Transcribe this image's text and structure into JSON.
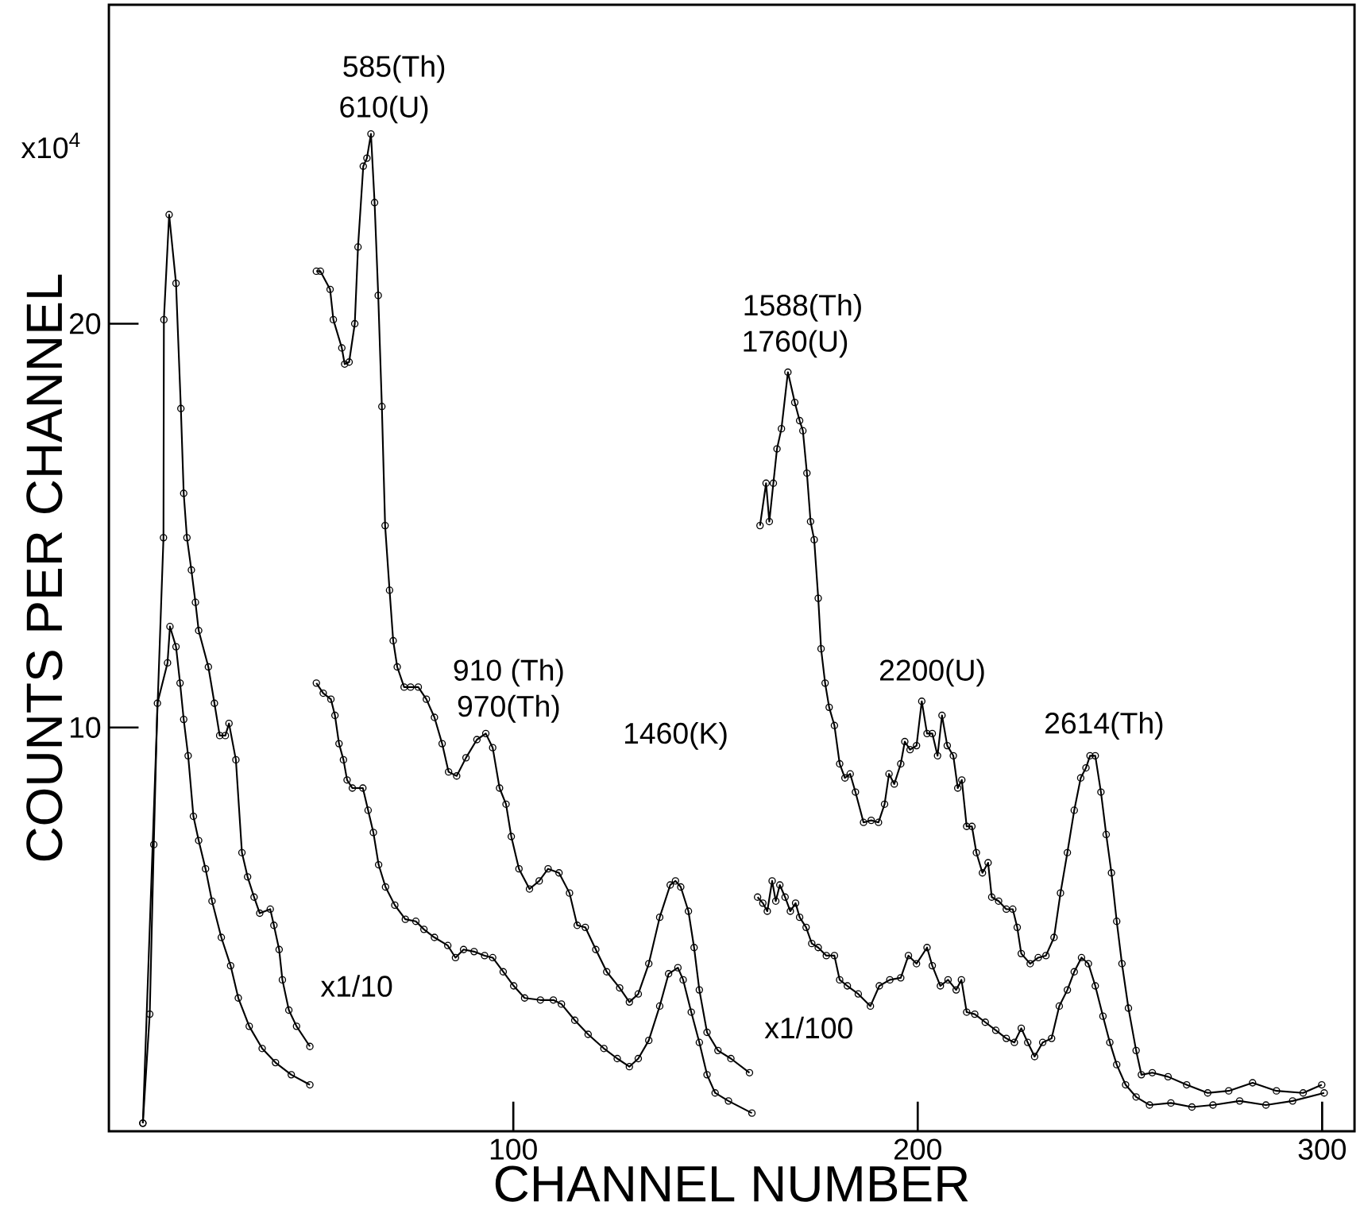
{
  "chart_data": {
    "type": "line",
    "xlabel": "CHANNEL NUMBER",
    "ylabel": "COUNTS PER CHANNEL",
    "xlim": [
      0,
      308
    ],
    "ylim": [
      0,
      27.9
    ],
    "xticks": [
      100,
      200,
      300
    ],
    "yticks": [
      10,
      20
    ],
    "marker": "circle",
    "series": [
      {
        "color": "#000000",
        "x": [
          8.4,
          13.5,
          13.6,
          14.9,
          16.6,
          17.8,
          18.5,
          19.3,
          20.4,
          21.4,
          22.2,
          24.6,
          26.1,
          27.4,
          28.8,
          29.7,
          31.4,
          32.9,
          34.3,
          35.9,
          37.3,
          39.9,
          40.8,
          42.1,
          42.9,
          44.5,
          46.4,
          49.7
        ],
        "values": [
          0.2,
          14.7,
          20.1,
          22.7,
          21.0,
          17.9,
          15.8,
          14.7,
          13.9,
          13.1,
          12.4,
          11.5,
          10.6,
          9.8,
          9.8,
          10.1,
          9.2,
          6.9,
          6.3,
          5.8,
          5.4,
          5.5,
          5.1,
          4.5,
          3.75,
          3.0,
          2.6,
          2.1
        ]
      },
      {
        "color": "#000000",
        "x": [
          8.4,
          10.1,
          11.1,
          12.0,
          14.5,
          15.1,
          16.6,
          17.6,
          18.5,
          19.6,
          20.9,
          22.2,
          23.9,
          25.5,
          27.8,
          30.1,
          32.0,
          34.7,
          37.9,
          41.2,
          45.1,
          49.7
        ],
        "values": [
          0.2,
          2.9,
          7.1,
          10.6,
          11.6,
          12.5,
          12.0,
          11.1,
          10.2,
          9.3,
          7.8,
          7.2,
          6.5,
          5.7,
          4.8,
          4.1,
          3.3,
          2.6,
          2.05,
          1.7,
          1.4,
          1.15
        ]
      },
      {
        "color": "#000000",
        "x": [
          51.3,
          52.3,
          54.7,
          55.5,
          57.6,
          58.3,
          59.4,
          60.8,
          61.6,
          62.9,
          63.8,
          64.8,
          65.7,
          66.6,
          67.5,
          68.3,
          69.4,
          70.3,
          71.3,
          73.0,
          74.6,
          76.5,
          78.5,
          80.5,
          82.4,
          84.0,
          86.0,
          88.3,
          91.0,
          93.2,
          94.9,
          96.6,
          98.2,
          99.5,
          101.4,
          104.0,
          106.4,
          108.6,
          111.3,
          113.9,
          115.8,
          117.8,
          120.4,
          123.1,
          126.3,
          128.7,
          130.9,
          133.5,
          136.2,
          138.8,
          140.1,
          141.4,
          143.3,
          144.7,
          146.0,
          147.9,
          150.6,
          153.8,
          158.4
        ],
        "values": [
          21.3,
          21.3,
          20.85,
          20.1,
          19.4,
          19.0,
          19.05,
          20.0,
          21.9,
          23.9,
          24.1,
          24.7,
          23.0,
          20.7,
          17.95,
          15.0,
          13.4,
          12.15,
          11.5,
          11.0,
          11.0,
          11.0,
          10.7,
          10.25,
          9.6,
          8.9,
          8.8,
          9.25,
          9.7,
          9.85,
          9.5,
          8.5,
          8.1,
          7.3,
          6.5,
          6.0,
          6.2,
          6.5,
          6.4,
          5.9,
          5.1,
          5.05,
          4.5,
          3.95,
          3.55,
          3.2,
          3.4,
          4.15,
          5.3,
          6.1,
          6.2,
          6.05,
          5.45,
          4.55,
          3.5,
          2.45,
          2.0,
          1.8,
          1.45
        ]
      },
      {
        "color": "#000000",
        "x": [
          51.3,
          53.0,
          54.9,
          55.9,
          56.9,
          58.0,
          58.9,
          60.2,
          62.8,
          64.1,
          65.4,
          66.7,
          68.4,
          70.7,
          73.3,
          75.9,
          77.9,
          80.5,
          83.8,
          85.7,
          87.7,
          90.3,
          92.9,
          94.9,
          97.5,
          100.1,
          102.8,
          106.7,
          109.9,
          111.9,
          115.2,
          118.5,
          122.4,
          125.7,
          128.7,
          130.9,
          133.5,
          136.2,
          138.4,
          140.7,
          142.0,
          144.0,
          146.0,
          147.9,
          149.9,
          153.2,
          159.0
        ],
        "values": [
          11.1,
          10.85,
          10.7,
          10.3,
          9.6,
          9.2,
          8.7,
          8.5,
          8.5,
          7.95,
          7.4,
          6.6,
          6.05,
          5.6,
          5.25,
          5.2,
          5.0,
          4.8,
          4.6,
          4.3,
          4.5,
          4.45,
          4.35,
          4.3,
          3.95,
          3.6,
          3.3,
          3.25,
          3.25,
          3.15,
          2.75,
          2.4,
          2.05,
          1.8,
          1.6,
          1.8,
          2.25,
          3.1,
          3.9,
          4.05,
          3.75,
          2.95,
          2.2,
          1.4,
          0.95,
          0.75,
          0.45
        ]
      },
      {
        "color": "#000000",
        "x": [
          161.0,
          162.5,
          163.3,
          164.3,
          165.2,
          166.3,
          167.9,
          169.6,
          170.8,
          171.6,
          172.6,
          173.5,
          174.4,
          175.4,
          176.1,
          177.1,
          178.1,
          179.4,
          180.7,
          182.0,
          183.3,
          184.6,
          186.6,
          188.5,
          190.3,
          191.8,
          192.9,
          194.2,
          195.8,
          196.8,
          198.1,
          199.7,
          201.0,
          202.3,
          203.6,
          204.9,
          206.0,
          207.3,
          208.8,
          209.9,
          210.9,
          212.1,
          213.4,
          214.5,
          216.0,
          217.4,
          218.3,
          220.0,
          221.9,
          223.5,
          224.6,
          225.6,
          227.8,
          229.8,
          231.7,
          233.7,
          235.3,
          237.0,
          238.7,
          240.3,
          241.6,
          242.6,
          243.9,
          245.3,
          246.6,
          247.9,
          249.2,
          250.5,
          252.1,
          254.0,
          255.3,
          258.0,
          261.9,
          266.5,
          271.7,
          276.9,
          282.8,
          288.7,
          295.3,
          299.9
        ],
        "values": [
          15.0,
          16.05,
          15.1,
          16.05,
          16.9,
          17.4,
          18.8,
          18.05,
          17.6,
          17.35,
          16.3,
          15.1,
          14.65,
          13.2,
          11.95,
          11.1,
          10.5,
          10.05,
          9.1,
          8.75,
          8.85,
          8.4,
          7.65,
          7.7,
          7.65,
          8.1,
          8.85,
          8.6,
          9.1,
          9.65,
          9.45,
          9.55,
          10.65,
          9.85,
          9.85,
          9.3,
          10.3,
          9.55,
          9.3,
          8.5,
          8.7,
          7.55,
          7.55,
          6.9,
          6.4,
          6.65,
          5.8,
          5.7,
          5.5,
          5.5,
          5.05,
          4.4,
          4.15,
          4.3,
          4.35,
          4.8,
          5.9,
          6.9,
          7.95,
          8.75,
          9.0,
          9.3,
          9.3,
          8.4,
          7.35,
          6.4,
          5.2,
          4.15,
          3.05,
          2.0,
          1.4,
          1.45,
          1.35,
          1.15,
          0.95,
          1.0,
          1.2,
          1.0,
          0.95,
          1.15
        ]
      },
      {
        "color": "#000000",
        "x": [
          160.4,
          161.7,
          162.8,
          164.0,
          164.9,
          165.9,
          167.2,
          168.5,
          169.8,
          170.8,
          172.4,
          173.8,
          175.4,
          177.4,
          179.4,
          180.7,
          182.6,
          185.3,
          188.3,
          190.5,
          193.1,
          195.8,
          197.7,
          199.7,
          202.3,
          203.6,
          205.6,
          207.5,
          209.5,
          210.8,
          212.1,
          214.1,
          216.7,
          219.3,
          221.9,
          223.9,
          225.6,
          227.2,
          228.9,
          230.9,
          233.1,
          235.0,
          237.0,
          238.7,
          240.5,
          242.2,
          243.9,
          245.8,
          247.5,
          249.2,
          251.4,
          254.0,
          257.3,
          262.6,
          267.8,
          273.0,
          279.6,
          286.1,
          292.7,
          300.5
        ],
        "values": [
          5.8,
          5.65,
          5.45,
          6.2,
          5.7,
          6.1,
          5.8,
          5.45,
          5.65,
          5.3,
          5.05,
          4.65,
          4.55,
          4.35,
          4.35,
          3.75,
          3.6,
          3.4,
          3.1,
          3.6,
          3.75,
          3.8,
          4.35,
          4.15,
          4.55,
          4.1,
          3.6,
          3.75,
          3.5,
          3.75,
          2.95,
          2.9,
          2.7,
          2.5,
          2.3,
          2.2,
          2.55,
          2.2,
          1.85,
          2.2,
          2.3,
          3.1,
          3.5,
          3.95,
          4.3,
          4.15,
          3.6,
          2.85,
          2.2,
          1.65,
          1.15,
          0.85,
          0.65,
          0.7,
          0.6,
          0.65,
          0.75,
          0.65,
          0.75,
          0.95
        ]
      }
    ],
    "annotations": [
      "x10$^{4}$",
      "585(Th)",
      "610(U)",
      "1588(Th)",
      "1760(U)",
      "910 (Th)",
      "970(Th)",
      "1460(K)",
      "2200(U)",
      "2614(Th)",
      "x1/10",
      "x1/100"
    ]
  }
}
